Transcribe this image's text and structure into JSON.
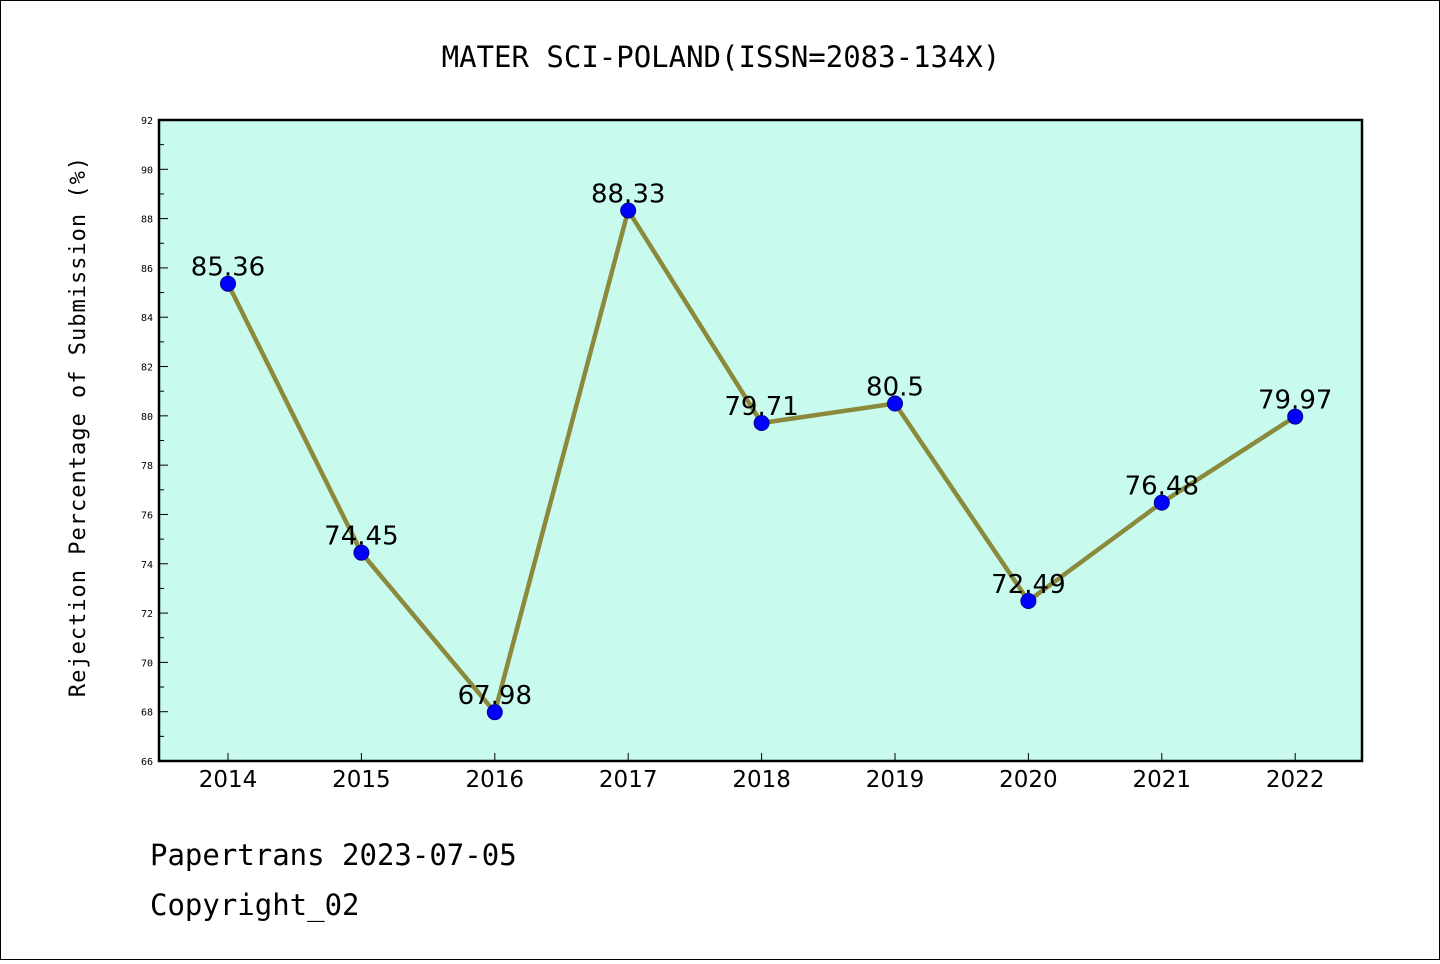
{
  "chart_data": {
    "type": "line",
    "title": "MATER SCI-POLAND(ISSN=2083-134X)",
    "xlabel": "",
    "ylabel": "Rejection Percentage of Submission (%)",
    "categories": [
      "2014",
      "2015",
      "2016",
      "2017",
      "2018",
      "2019",
      "2020",
      "2021",
      "2022"
    ],
    "values": [
      85.36,
      74.45,
      67.98,
      88.33,
      79.71,
      80.5,
      72.49,
      76.48,
      79.97
    ],
    "data_labels": [
      "85.36",
      "74.45",
      "67.98",
      "88.33",
      "79.71",
      "80.5",
      "72.49",
      "76.48",
      "79.97"
    ],
    "ylim": [
      66,
      92
    ],
    "yticks": [
      66,
      68,
      70,
      72,
      74,
      76,
      78,
      80,
      82,
      84,
      86,
      88,
      90,
      92
    ],
    "grid": false,
    "legend": "none",
    "colors": {
      "plot_background": "#c8fbee",
      "line": "#8b8a3c",
      "marker": "#0000ff"
    }
  },
  "footer": {
    "line1": "Papertrans 2023-07-05",
    "line2": "Copyright_02"
  }
}
